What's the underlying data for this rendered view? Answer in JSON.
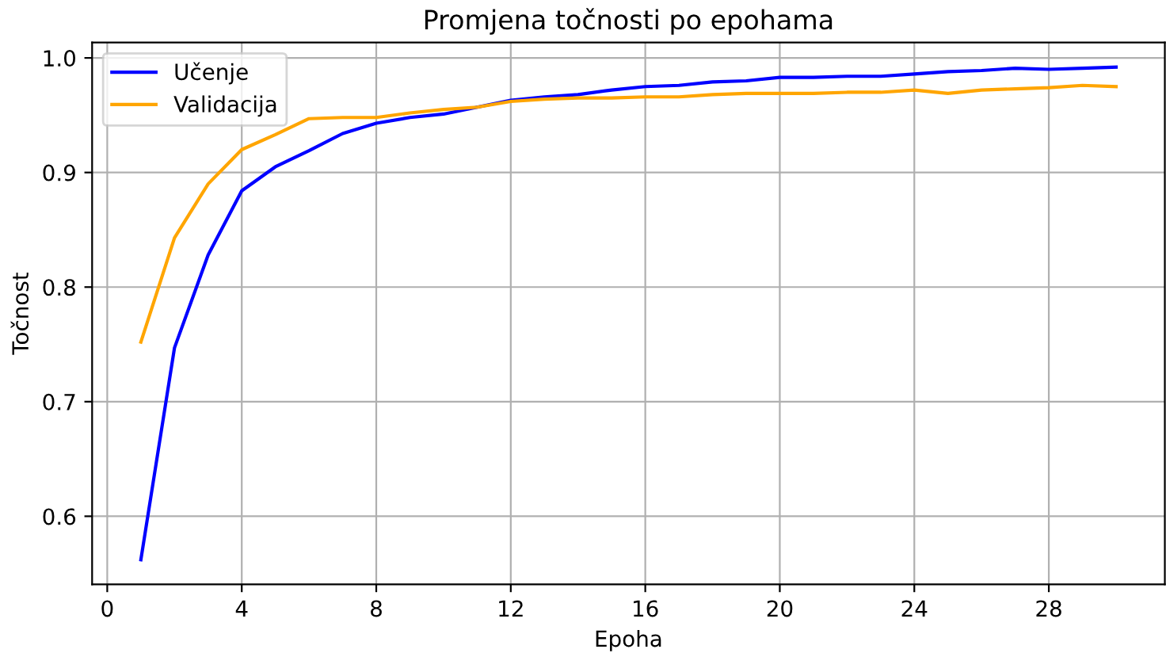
{
  "chart_data": {
    "type": "line",
    "title": "Promjena točnosti po epohama",
    "xlabel": "Epoha",
    "ylabel": "Točnost",
    "x": [
      1,
      2,
      3,
      4,
      5,
      6,
      7,
      8,
      9,
      10,
      11,
      12,
      13,
      14,
      15,
      16,
      17,
      18,
      19,
      20,
      21,
      22,
      23,
      24,
      25,
      26,
      27,
      28,
      29,
      30
    ],
    "series": [
      {
        "name": "Učenje",
        "color": "#0000ff",
        "values": [
          0.562,
          0.747,
          0.828,
          0.884,
          0.905,
          0.919,
          0.934,
          0.943,
          0.948,
          0.951,
          0.957,
          0.963,
          0.966,
          0.968,
          0.972,
          0.975,
          0.976,
          0.979,
          0.98,
          0.983,
          0.983,
          0.984,
          0.984,
          0.986,
          0.988,
          0.989,
          0.991,
          0.99,
          0.991,
          0.992
        ]
      },
      {
        "name": "Validacija",
        "color": "#ffa500",
        "values": [
          0.752,
          0.843,
          0.89,
          0.92,
          0.933,
          0.947,
          0.948,
          0.948,
          0.952,
          0.955,
          0.957,
          0.962,
          0.964,
          0.965,
          0.965,
          0.966,
          0.966,
          0.968,
          0.969,
          0.969,
          0.969,
          0.97,
          0.97,
          0.972,
          0.969,
          0.972,
          0.973,
          0.974,
          0.976,
          0.975
        ]
      }
    ],
    "xlim": [
      -0.45,
      31.45
    ],
    "ylim": [
      0.5405,
      1.0135
    ],
    "xticks": [
      0,
      4,
      8,
      12,
      16,
      20,
      24,
      28
    ],
    "yticks": [
      0.6,
      0.7,
      0.8,
      0.9,
      {
        "value": 1,
        "label": "1.0"
      }
    ],
    "grid": true,
    "legend": "top left",
    "line_style": "solid",
    "marker": "none"
  }
}
